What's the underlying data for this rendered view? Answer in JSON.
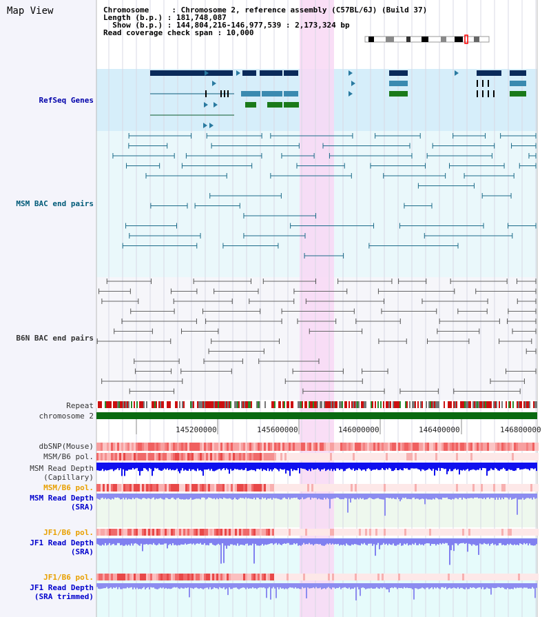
{
  "title": "Map View",
  "info": {
    "line1": "Chromosome     : Chromosome 2, reference assembly (C57BL/6J) (Build 37)",
    "line2": "Length (b.p.) : 181,748,087",
    "line3": "  Show (b.p.) : 144,804,216-146,977,539 : 2,173,324 bp",
    "line4": "Read coverage check span : 10,000"
  },
  "tracks": {
    "refseq": "RefSeq Genes",
    "msm_bac": "MSM BAC end pairs",
    "b6n_bac": "B6N BAC end pairs",
    "repeat": "Repeat",
    "chromosome": "chromosome 2",
    "dbsnp": "dbSNP(Mouse)",
    "msm_b6_pol": "MSM/B6 pol.",
    "msm_depth_cap_1": "MSM Read Depth",
    "msm_depth_cap_2": "(Capillary)",
    "msm_b6_pol2": "MSM/B6 pol.",
    "msm_depth_sra_1": "MSM Read Depth",
    "msm_depth_sra_2": "(SRA)",
    "jf1_b6_pol": "JF1/B6 pol.",
    "jf1_depth_sra_1": "JF1 Read Depth",
    "jf1_depth_sra_2": "(SRA)",
    "jf1_b6_pol2": "JF1/B6 pol.",
    "jf1_depth_trim_1": "JF1 Read Depth",
    "jf1_depth_trim_2": "(SRA trimmed)"
  },
  "axis": {
    "ticks": [
      "145200000",
      "145600000",
      "146000000",
      "146400000",
      "146800000"
    ]
  },
  "colors": {
    "refseq_label": "#0000aa",
    "msm_label": "#005a78",
    "b6n_label": "#333333",
    "highlight": "#f8d8f4",
    "pol_label": "#e8a000",
    "depth_label": "#0000cc"
  }
}
